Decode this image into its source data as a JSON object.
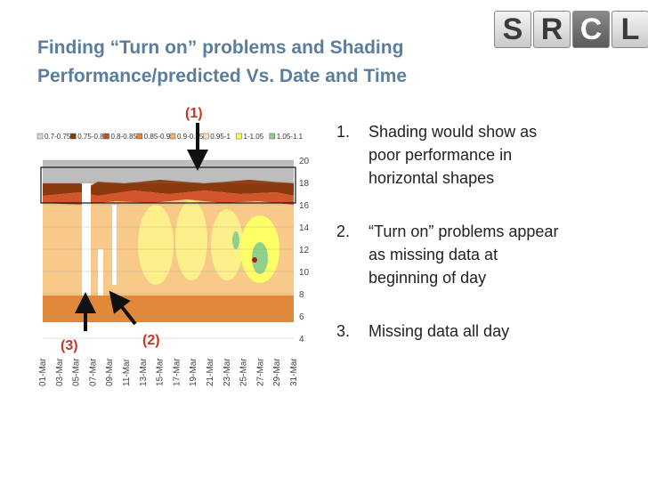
{
  "slide": {
    "title_line1": "Finding “Turn on” problems and Shading",
    "title_line2": "Performance/predicted Vs. Date and Time"
  },
  "logo": {
    "letters": [
      "S",
      "R",
      "C",
      "L"
    ]
  },
  "bullets": [
    {
      "number": "1.",
      "lines": [
        "Shading would show as",
        "poor performance in",
        "horizontal shapes"
      ]
    },
    {
      "number": "2.",
      "lines": [
        "“Turn on” problems appear",
        "as missing data at",
        "beginning of day"
      ]
    },
    {
      "number": "3.",
      "lines": [
        "Missing data all day"
      ]
    }
  ],
  "callouts": {
    "c1": "(1)",
    "c2": "(2)",
    "c3": "(3)"
  },
  "chart_data": {
    "type": "heatmap",
    "legend": [
      "0.7-0.75",
      "0.75-0.8",
      "0.8-0.85",
      "0.85-0.9",
      "0.9-0.95",
      "0.95-1",
      "1-1.05",
      "1.05-1.1"
    ],
    "legend_colors": [
      "#d9d9d9",
      "#7f3f00",
      "#c0501f",
      "#e8873a",
      "#f6b26b",
      "#fde5b4",
      "#ffff66",
      "#8fd18b"
    ],
    "y_ticks": [
      "20",
      "18",
      "16",
      "14",
      "12",
      "10",
      "8",
      "6",
      "4"
    ],
    "ylim": [
      4,
      20
    ],
    "x_ticks": [
      "01-Mar",
      "03-Mar",
      "05-Mar",
      "07-Mar",
      "09-Mar",
      "11-Mar",
      "13-Mar",
      "15-Mar",
      "17-Mar",
      "19-Mar",
      "21-Mar",
      "23-Mar",
      "25-Mar",
      "27-Mar",
      "29-Mar",
      "31-Mar"
    ]
  }
}
